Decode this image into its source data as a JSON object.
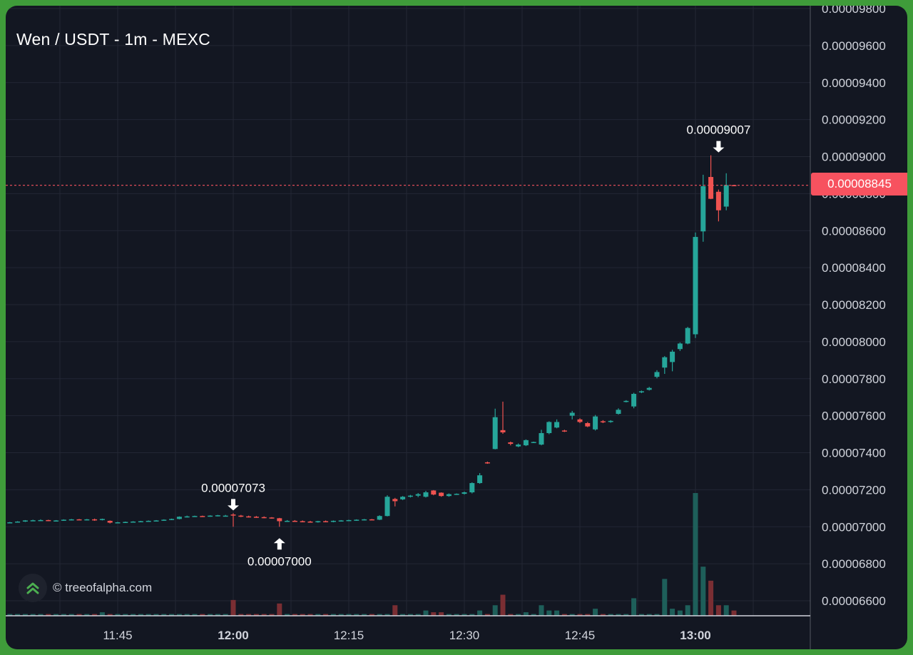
{
  "title": "Wen / USDT - 1m - MEXC",
  "brand": {
    "text": "© treeofalpha.com",
    "icon": "double-chevron-up-icon"
  },
  "colors": {
    "background": "#131722",
    "up": "#26a69a",
    "down": "#ef5350",
    "up_volume": "#1e5f5a",
    "down_volume": "#7a2e33",
    "grid": "#232734",
    "price_line": "#f7525f",
    "frame": "#3f9c3a"
  },
  "chart_data": {
    "type": "candlestick",
    "title": "Wen / USDT - 1m - MEXC",
    "interval": "1m",
    "exchange": "MEXC",
    "pair": "Wen / USDT",
    "y_ticks": [
      "0.00006600",
      "0.00006800",
      "0.00007000",
      "0.00007200",
      "0.00007400",
      "0.00007600",
      "0.00007800",
      "0.00008000",
      "0.00008200",
      "0.00008400",
      "0.00008600",
      "0.00008800",
      "0.00009000",
      "0.00009200",
      "0.00009400",
      "0.00009600",
      "0.00009800"
    ],
    "x_ticks": [
      {
        "label": "11:45",
        "minute": -15,
        "bold": false
      },
      {
        "label": "12:00",
        "minute": 0,
        "bold": true
      },
      {
        "label": "12:15",
        "minute": 15,
        "bold": false
      },
      {
        "label": "12:30",
        "minute": 30,
        "bold": false
      },
      {
        "label": "12:45",
        "minute": 45,
        "bold": false
      },
      {
        "label": "13:00",
        "minute": 60,
        "bold": true
      }
    ],
    "last_price": "0.00008845",
    "last_price_value": 8.845e-05,
    "annotations": [
      {
        "label": "0.00007073",
        "minute": 0,
        "value": 7.073e-05,
        "type": "high"
      },
      {
        "label": "0.00007000",
        "minute": 6,
        "value": 7e-05,
        "type": "low"
      },
      {
        "label": "0.00009007",
        "minute": 63,
        "value": 9.007e-05,
        "type": "high"
      }
    ],
    "candles": [
      {
        "t": -30,
        "o": 7.022e-05,
        "h": 7.025e-05,
        "l": 7.018e-05,
        "c": 7.021e-05,
        "v": 0.1
      },
      {
        "t": -29,
        "o": 7.021e-05,
        "h": 7.026e-05,
        "l": 7.019e-05,
        "c": 7.024e-05,
        "v": 0.1
      },
      {
        "t": -28,
        "o": 7.024e-05,
        "h": 7.03e-05,
        "l": 7.022e-05,
        "c": 7.028e-05,
        "v": 0.1
      },
      {
        "t": -27,
        "o": 7.028e-05,
        "h": 7.036e-05,
        "l": 7.026e-05,
        "c": 7.034e-05,
        "v": 0.1
      },
      {
        "t": -26,
        "o": 7.034e-05,
        "h": 7.038e-05,
        "l": 7.03e-05,
        "c": 7.035e-05,
        "v": 0.1
      },
      {
        "t": -25,
        "o": 7.035e-05,
        "h": 7.04e-05,
        "l": 7.032e-05,
        "c": 7.036e-05,
        "v": 0.1
      },
      {
        "t": -24,
        "o": 7.036e-05,
        "h": 7.038e-05,
        "l": 7.03e-05,
        "c": 7.032e-05,
        "v": 0.1
      },
      {
        "t": -23,
        "o": 7.032e-05,
        "h": 7.036e-05,
        "l": 7.028e-05,
        "c": 7.034e-05,
        "v": 0.1
      },
      {
        "t": -22,
        "o": 7.034e-05,
        "h": 7.04e-05,
        "l": 7.032e-05,
        "c": 7.038e-05,
        "v": 0.1
      },
      {
        "t": -21,
        "o": 7.038e-05,
        "h": 7.042e-05,
        "l": 7.034e-05,
        "c": 7.04e-05,
        "v": 0.1
      },
      {
        "t": -20,
        "o": 7.04e-05,
        "h": 7.042e-05,
        "l": 7.036e-05,
        "c": 7.038e-05,
        "v": 0.1
      },
      {
        "t": -19,
        "o": 7.038e-05,
        "h": 7.042e-05,
        "l": 7.034e-05,
        "c": 7.04e-05,
        "v": 0.1
      },
      {
        "t": -18,
        "o": 7.04e-05,
        "h": 7.044e-05,
        "l": 7.032e-05,
        "c": 7.036e-05,
        "v": 0.1
      },
      {
        "t": -17,
        "o": 7.036e-05,
        "h": 7.044e-05,
        "l": 7.034e-05,
        "c": 7.042e-05,
        "v": 0.2
      },
      {
        "t": -16,
        "o": 7.032e-05,
        "h": 7.034e-05,
        "l": 7.018e-05,
        "c": 7.022e-05,
        "v": 0.1
      },
      {
        "t": -15,
        "o": 7.022e-05,
        "h": 7.026e-05,
        "l": 7.02e-05,
        "c": 7.024e-05,
        "v": 0.1
      },
      {
        "t": -14,
        "o": 7.024e-05,
        "h": 7.028e-05,
        "l": 7.022e-05,
        "c": 7.026e-05,
        "v": 0.1
      },
      {
        "t": -13,
        "o": 7.026e-05,
        "h": 7.03e-05,
        "l": 7.024e-05,
        "c": 7.028e-05,
        "v": 0.1
      },
      {
        "t": -12,
        "o": 7.028e-05,
        "h": 7.032e-05,
        "l": 7.026e-05,
        "c": 7.03e-05,
        "v": 0.1
      },
      {
        "t": -11,
        "o": 7.03e-05,
        "h": 7.034e-05,
        "l": 7.028e-05,
        "c": 7.032e-05,
        "v": 0.1
      },
      {
        "t": -10,
        "o": 7.032e-05,
        "h": 7.036e-05,
        "l": 7.03e-05,
        "c": 7.034e-05,
        "v": 0.1
      },
      {
        "t": -9,
        "o": 7.034e-05,
        "h": 7.04e-05,
        "l": 7.032e-05,
        "c": 7.038e-05,
        "v": 0.1
      },
      {
        "t": -8,
        "o": 7.038e-05,
        "h": 7.044e-05,
        "l": 7.036e-05,
        "c": 7.042e-05,
        "v": 0.1
      },
      {
        "t": -7,
        "o": 7.042e-05,
        "h": 7.056e-05,
        "l": 7.04e-05,
        "c": 7.054e-05,
        "v": 0.1
      },
      {
        "t": -6,
        "o": 7.054e-05,
        "h": 7.06e-05,
        "l": 7.05e-05,
        "c": 7.056e-05,
        "v": 0.1
      },
      {
        "t": -5,
        "o": 7.056e-05,
        "h": 7.06e-05,
        "l": 7.054e-05,
        "c": 7.058e-05,
        "v": 0.1
      },
      {
        "t": -4,
        "o": 7.058e-05,
        "h": 7.06e-05,
        "l": 7.054e-05,
        "c": 7.056e-05,
        "v": 0.1
      },
      {
        "t": -3,
        "o": 7.056e-05,
        "h": 7.062e-05,
        "l": 7.054e-05,
        "c": 7.06e-05,
        "v": 0.1
      },
      {
        "t": -2,
        "o": 7.058e-05,
        "h": 7.064e-05,
        "l": 7.056e-05,
        "c": 7.062e-05,
        "v": 0.1
      },
      {
        "t": -1,
        "o": 7.06e-05,
        "h": 7.064e-05,
        "l": 7.056e-05,
        "c": 7.06e-05,
        "v": 0.1
      },
      {
        "t": 0,
        "o": 7.066e-05,
        "h": 7.073e-05,
        "l": 7e-05,
        "c": 7.062e-05,
        "v": 0.9
      },
      {
        "t": 1,
        "o": 7.06e-05,
        "h": 7.064e-05,
        "l": 7.052e-05,
        "c": 7.056e-05,
        "v": 0.1
      },
      {
        "t": 2,
        "o": 7.056e-05,
        "h": 7.06e-05,
        "l": 7.05e-05,
        "c": 7.054e-05,
        "v": 0.1
      },
      {
        "t": 3,
        "o": 7.054e-05,
        "h": 7.058e-05,
        "l": 7.048e-05,
        "c": 7.052e-05,
        "v": 0.1
      },
      {
        "t": 4,
        "o": 7.052e-05,
        "h": 7.056e-05,
        "l": 7.046e-05,
        "c": 7.05e-05,
        "v": 0.1
      },
      {
        "t": 5,
        "o": 7.05e-05,
        "h": 7.052e-05,
        "l": 7.044e-05,
        "c": 7.046e-05,
        "v": 0.1
      },
      {
        "t": 6,
        "o": 7.046e-05,
        "h": 7.048e-05,
        "l": 7e-05,
        "c": 7.03e-05,
        "v": 0.7
      },
      {
        "t": 7,
        "o": 7.03e-05,
        "h": 7.036e-05,
        "l": 7.026e-05,
        "c": 7.032e-05,
        "v": 0.1
      },
      {
        "t": 8,
        "o": 7.032e-05,
        "h": 7.036e-05,
        "l": 7.026e-05,
        "c": 7.03e-05,
        "v": 0.1
      },
      {
        "t": 9,
        "o": 7.03e-05,
        "h": 7.034e-05,
        "l": 7.024e-05,
        "c": 7.028e-05,
        "v": 0.1
      },
      {
        "t": 10,
        "o": 7.028e-05,
        "h": 7.032e-05,
        "l": 7.022e-05,
        "c": 7.026e-05,
        "v": 0.1
      },
      {
        "t": 11,
        "o": 7.026e-05,
        "h": 7.032e-05,
        "l": 7.022e-05,
        "c": 7.03e-05,
        "v": 0.1
      },
      {
        "t": 12,
        "o": 7.03e-05,
        "h": 7.034e-05,
        "l": 7.024e-05,
        "c": 7.028e-05,
        "v": 0.1
      },
      {
        "t": 13,
        "o": 7.028e-05,
        "h": 7.034e-05,
        "l": 7.024e-05,
        "c": 7.032e-05,
        "v": 0.1
      },
      {
        "t": 14,
        "o": 7.032e-05,
        "h": 7.036e-05,
        "l": 7.028e-05,
        "c": 7.034e-05,
        "v": 0.1
      },
      {
        "t": 15,
        "o": 7.034e-05,
        "h": 7.038e-05,
        "l": 7.03e-05,
        "c": 7.036e-05,
        "v": 0.1
      },
      {
        "t": 16,
        "o": 7.036e-05,
        "h": 7.04e-05,
        "l": 7.032e-05,
        "c": 7.038e-05,
        "v": 0.1
      },
      {
        "t": 17,
        "o": 7.038e-05,
        "h": 7.042e-05,
        "l": 7.034e-05,
        "c": 7.04e-05,
        "v": 0.1
      },
      {
        "t": 18,
        "o": 7.04e-05,
        "h": 7.042e-05,
        "l": 7.036e-05,
        "c": 7.038e-05,
        "v": 0.1
      },
      {
        "t": 19,
        "o": 7.038e-05,
        "h": 7.062e-05,
        "l": 7.036e-05,
        "c": 7.058e-05,
        "v": 0.1
      },
      {
        "t": 20,
        "o": 7.058e-05,
        "h": 7.17e-05,
        "l": 7.056e-05,
        "c": 7.162e-05,
        "v": 0.1
      },
      {
        "t": 21,
        "o": 7.15e-05,
        "h": 7.156e-05,
        "l": 7.11e-05,
        "c": 7.138e-05,
        "v": 0.6
      },
      {
        "t": 22,
        "o": 7.148e-05,
        "h": 7.166e-05,
        "l": 7.144e-05,
        "c": 7.162e-05,
        "v": 0.1
      },
      {
        "t": 23,
        "o": 7.162e-05,
        "h": 7.172e-05,
        "l": 7.158e-05,
        "c": 7.168e-05,
        "v": 0.1
      },
      {
        "t": 24,
        "o": 7.168e-05,
        "h": 7.182e-05,
        "l": 7.16e-05,
        "c": 7.176e-05,
        "v": 0.1
      },
      {
        "t": 25,
        "o": 7.162e-05,
        "h": 7.194e-05,
        "l": 7.158e-05,
        "c": 7.186e-05,
        "v": 0.3
      },
      {
        "t": 26,
        "o": 7.196e-05,
        "h": 7.198e-05,
        "l": 7.17e-05,
        "c": 7.174e-05,
        "v": 0.2
      },
      {
        "t": 27,
        "o": 7.184e-05,
        "h": 7.186e-05,
        "l": 7.162e-05,
        "c": 7.166e-05,
        "v": 0.2
      },
      {
        "t": 28,
        "o": 7.166e-05,
        "h": 7.18e-05,
        "l": 7.162e-05,
        "c": 7.176e-05,
        "v": 0.1
      },
      {
        "t": 29,
        "o": 7.176e-05,
        "h": 7.18e-05,
        "l": 7.172e-05,
        "c": 7.178e-05,
        "v": 0.1
      },
      {
        "t": 30,
        "o": 7.178e-05,
        "h": 7.19e-05,
        "l": 7.174e-05,
        "c": 7.186e-05,
        "v": 0.1
      },
      {
        "t": 31,
        "o": 7.186e-05,
        "h": 7.24e-05,
        "l": 7.18e-05,
        "c": 7.236e-05,
        "v": 0.1
      },
      {
        "t": 32,
        "o": 7.236e-05,
        "h": 7.29e-05,
        "l": 7.232e-05,
        "c": 7.278e-05,
        "v": 0.3
      },
      {
        "t": 33,
        "o": 7.348e-05,
        "h": 7.352e-05,
        "l": 7.34e-05,
        "c": 7.344e-05,
        "v": 0.1
      },
      {
        "t": 34,
        "o": 7.42e-05,
        "h": 7.638e-05,
        "l": 7.418e-05,
        "c": 7.592e-05,
        "v": 0.6
      },
      {
        "t": 35,
        "o": 7.522e-05,
        "h": 7.676e-05,
        "l": 7.502e-05,
        "c": 7.51e-05,
        "v": 1.2
      },
      {
        "t": 36,
        "o": 7.456e-05,
        "h": 7.46e-05,
        "l": 7.44e-05,
        "c": 7.448e-05,
        "v": 0.1
      },
      {
        "t": 37,
        "o": 7.434e-05,
        "h": 7.45e-05,
        "l": 7.43e-05,
        "c": 7.444e-05,
        "v": 0.1
      },
      {
        "t": 38,
        "o": 7.44e-05,
        "h": 7.472e-05,
        "l": 7.436e-05,
        "c": 7.468e-05,
        "v": 0.2
      },
      {
        "t": 39,
        "o": 7.456e-05,
        "h": 7.46e-05,
        "l": 7.452e-05,
        "c": 7.458e-05,
        "v": 0.1
      },
      {
        "t": 40,
        "o": 7.444e-05,
        "h": 7.524e-05,
        "l": 7.44e-05,
        "c": 7.506e-05,
        "v": 0.6
      },
      {
        "t": 41,
        "o": 7.506e-05,
        "h": 7.57e-05,
        "l": 7.5e-05,
        "c": 7.566e-05,
        "v": 0.3
      },
      {
        "t": 42,
        "o": 7.536e-05,
        "h": 7.58e-05,
        "l": 7.532e-05,
        "c": 7.566e-05,
        "v": 0.3
      },
      {
        "t": 43,
        "o": 7.52e-05,
        "h": 7.524e-05,
        "l": 7.512e-05,
        "c": 7.518e-05,
        "v": 0.1
      },
      {
        "t": 44,
        "o": 7.6e-05,
        "h": 7.626e-05,
        "l": 7.58e-05,
        "c": 7.616e-05,
        "v": 0.1
      },
      {
        "t": 45,
        "o": 7.58e-05,
        "h": 7.586e-05,
        "l": 7.56e-05,
        "c": 7.566e-05,
        "v": 0.1
      },
      {
        "t": 46,
        "o": 7.56e-05,
        "h": 7.566e-05,
        "l": 7.538e-05,
        "c": 7.542e-05,
        "v": 0.1
      },
      {
        "t": 47,
        "o": 7.526e-05,
        "h": 7.604e-05,
        "l": 7.52e-05,
        "c": 7.596e-05,
        "v": 0.4
      },
      {
        "t": 48,
        "o": 7.57e-05,
        "h": 7.576e-05,
        "l": 7.56e-05,
        "c": 7.566e-05,
        "v": 0.1
      },
      {
        "t": 49,
        "o": 7.566e-05,
        "h": 7.576e-05,
        "l": 7.562e-05,
        "c": 7.572e-05,
        "v": 0.1
      },
      {
        "t": 50,
        "o": 7.61e-05,
        "h": 7.64e-05,
        "l": 7.606e-05,
        "c": 7.632e-05,
        "v": 0.1
      },
      {
        "t": 51,
        "o": 7.676e-05,
        "h": 7.684e-05,
        "l": 7.672e-05,
        "c": 7.68e-05,
        "v": 0.1
      },
      {
        "t": 52,
        "o": 7.65e-05,
        "h": 7.724e-05,
        "l": 7.64e-05,
        "c": 7.718e-05,
        "v": 1.0
      },
      {
        "t": 53,
        "o": 7.726e-05,
        "h": 7.736e-05,
        "l": 7.722e-05,
        "c": 7.732e-05,
        "v": 0.1
      },
      {
        "t": 54,
        "o": 7.74e-05,
        "h": 7.756e-05,
        "l": 7.736e-05,
        "c": 7.75e-05,
        "v": 0.1
      },
      {
        "t": 55,
        "o": 7.81e-05,
        "h": 7.846e-05,
        "l": 7.802e-05,
        "c": 7.836e-05,
        "v": 0.1
      },
      {
        "t": 56,
        "o": 7.86e-05,
        "h": 7.922e-05,
        "l": 7.826e-05,
        "c": 7.916e-05,
        "v": 2.1
      },
      {
        "t": 57,
        "o": 7.89e-05,
        "h": 7.956e-05,
        "l": 7.84e-05,
        "c": 7.946e-05,
        "v": 0.4
      },
      {
        "t": 58,
        "o": 7.96e-05,
        "h": 7.996e-05,
        "l": 7.95e-05,
        "c": 7.99e-05,
        "v": 0.3
      },
      {
        "t": 59,
        "o": 7.99e-05,
        "h": 8.08e-05,
        "l": 7.986e-05,
        "c": 8.074e-05,
        "v": 0.6
      },
      {
        "t": 60,
        "o": 8.04e-05,
        "h": 8.59e-05,
        "l": 8.02e-05,
        "c": 8.566e-05,
        "v": 7.0
      },
      {
        "t": 61,
        "o": 8.596e-05,
        "h": 8.902e-05,
        "l": 8.54e-05,
        "c": 8.84e-05,
        "v": 2.8
      },
      {
        "t": 62,
        "o": 8.89e-05,
        "h": 9.007e-05,
        "l": 8.77e-05,
        "c": 8.772e-05,
        "v": 2.0
      },
      {
        "t": 63,
        "o": 8.81e-05,
        "h": 8.822e-05,
        "l": 8.65e-05,
        "c": 8.71e-05,
        "v": 0.6
      },
      {
        "t": 64,
        "o": 8.73e-05,
        "h": 8.91e-05,
        "l": 8.71e-05,
        "c": 8.846e-05,
        "v": 0.6
      },
      {
        "t": 65,
        "o": 8.846e-05,
        "h": 8.846e-05,
        "l": 8.844e-05,
        "c": 8.845e-05,
        "v": 0.3
      }
    ]
  }
}
